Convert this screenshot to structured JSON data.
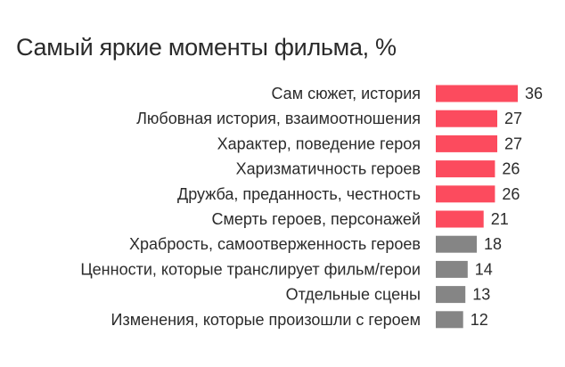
{
  "colors": {
    "highlight": "#fc4b5e",
    "neutral": "#858585",
    "text": "#2b2b2b"
  },
  "chart_data": {
    "type": "bar",
    "orientation": "horizontal",
    "title": "Самый яркие моменты фильма, %",
    "categories": [
      "Сам сюжет, история",
      "Любовная история, взаимоотношения",
      "Характер, поведение героя",
      "Харизматичность героев",
      "Дружба, преданность, честность",
      "Смерть героев, персонажей",
      "Храбрость, самоотверженность героев",
      "Ценности, которые транслирует фильм/герои",
      "Отдельные сцены",
      "Изменения, которые произошли с героем"
    ],
    "values": [
      36,
      27,
      27,
      26,
      26,
      21,
      18,
      14,
      13,
      12
    ],
    "value_labels": [
      "36",
      "27",
      "27",
      "26",
      "26",
      "21",
      "18",
      "14",
      "13",
      "12"
    ],
    "bar_colors": [
      "highlight",
      "highlight",
      "highlight",
      "highlight",
      "highlight",
      "highlight",
      "neutral",
      "neutral",
      "neutral",
      "neutral"
    ],
    "xlim": [
      0,
      36
    ],
    "grid": false,
    "legend": "none",
    "xlabel": "",
    "ylabel": ""
  }
}
